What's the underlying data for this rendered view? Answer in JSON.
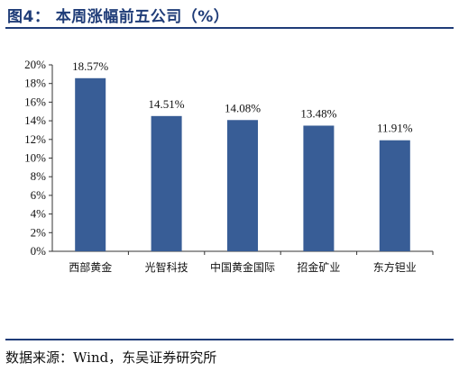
{
  "figure": {
    "title": "图4：  本周涨幅前五公司（%）",
    "source": "数据来源：Wind，东吴证券研究所"
  },
  "chart_data": {
    "type": "bar",
    "categories": [
      "西部黄金",
      "光智科技",
      "中国黄金国际",
      "招金矿业",
      "东方钽业"
    ],
    "values": [
      18.57,
      14.51,
      14.08,
      13.48,
      11.91
    ],
    "data_labels": [
      "18.57%",
      "14.51%",
      "14.08%",
      "13.48%",
      "11.91%"
    ],
    "ylim": [
      0,
      20
    ],
    "yticks": [
      "0%",
      "2%",
      "4%",
      "6%",
      "8%",
      "10%",
      "12%",
      "14%",
      "16%",
      "18%",
      "20%"
    ],
    "title": "",
    "xlabel": "",
    "ylabel": "",
    "grid": false,
    "bar_color": "#385d96"
  }
}
